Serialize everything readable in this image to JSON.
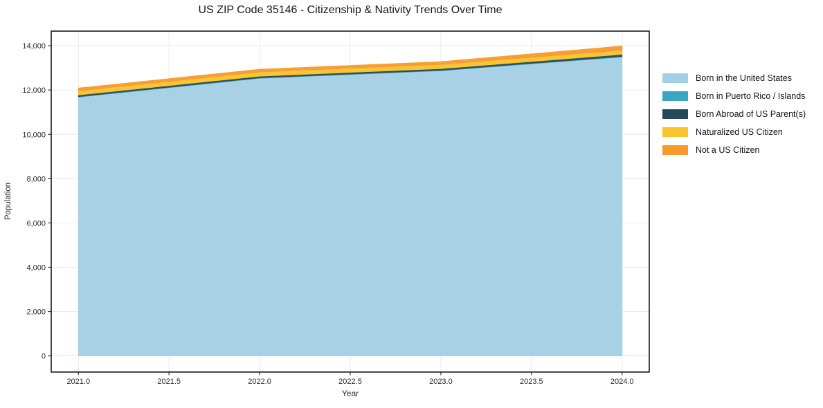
{
  "chart_data": {
    "type": "area",
    "stacked": true,
    "title": "US ZIP Code 35146 - Citizenship & Nativity Trends Over Time",
    "xlabel": "Year",
    "ylabel": "Population",
    "x": [
      2021,
      2022,
      2023,
      2024
    ],
    "series": [
      {
        "name": "Born in the United States",
        "color": "#a4cfe5",
        "values": [
          11680,
          12530,
          12870,
          13490
        ]
      },
      {
        "name": "Born in Puerto Rico / Islands",
        "color": "#3aa6c0",
        "values": [
          25,
          25,
          25,
          30
        ]
      },
      {
        "name": "Born Abroad of US Parent(s)",
        "color": "#27485b",
        "values": [
          70,
          70,
          70,
          90
        ]
      },
      {
        "name": "Naturalized US Citizen",
        "color": "#f8c32d",
        "values": [
          190,
          190,
          190,
          190
        ]
      },
      {
        "name": "Not a US Citizen",
        "color": "#f79a2e",
        "values": [
          125,
          125,
          125,
          190
        ]
      }
    ],
    "totals": [
      12090,
      12940,
      13280,
      13990
    ],
    "xlim": [
      2020.85,
      2024.15
    ],
    "ylim": [
      -730,
      14660
    ],
    "xticks": [
      {
        "v": 2021.0,
        "label": "2021.0"
      },
      {
        "v": 2021.5,
        "label": "2021.5"
      },
      {
        "v": 2022.0,
        "label": "2022.0"
      },
      {
        "v": 2022.5,
        "label": "2022.5"
      },
      {
        "v": 2023.0,
        "label": "2023.0"
      },
      {
        "v": 2023.5,
        "label": "2023.5"
      },
      {
        "v": 2024.0,
        "label": "2024.0"
      }
    ],
    "yticks": [
      {
        "v": 0,
        "label": "0"
      },
      {
        "v": 2000,
        "label": "2,000"
      },
      {
        "v": 4000,
        "label": "4,000"
      },
      {
        "v": 6000,
        "label": "6,000"
      },
      {
        "v": 8000,
        "label": "8,000"
      },
      {
        "v": 10000,
        "label": "10,000"
      },
      {
        "v": 12000,
        "label": "12,000"
      },
      {
        "v": 14000,
        "label": "14,000"
      }
    ],
    "grid": true,
    "legend_position": "right"
  },
  "colors": {
    "background": "#ffffff",
    "spine": "#1a1a1a",
    "grid": "#e9e9e9",
    "tick": "#333333",
    "tick_text": "#262626",
    "title_text": "#141414"
  }
}
